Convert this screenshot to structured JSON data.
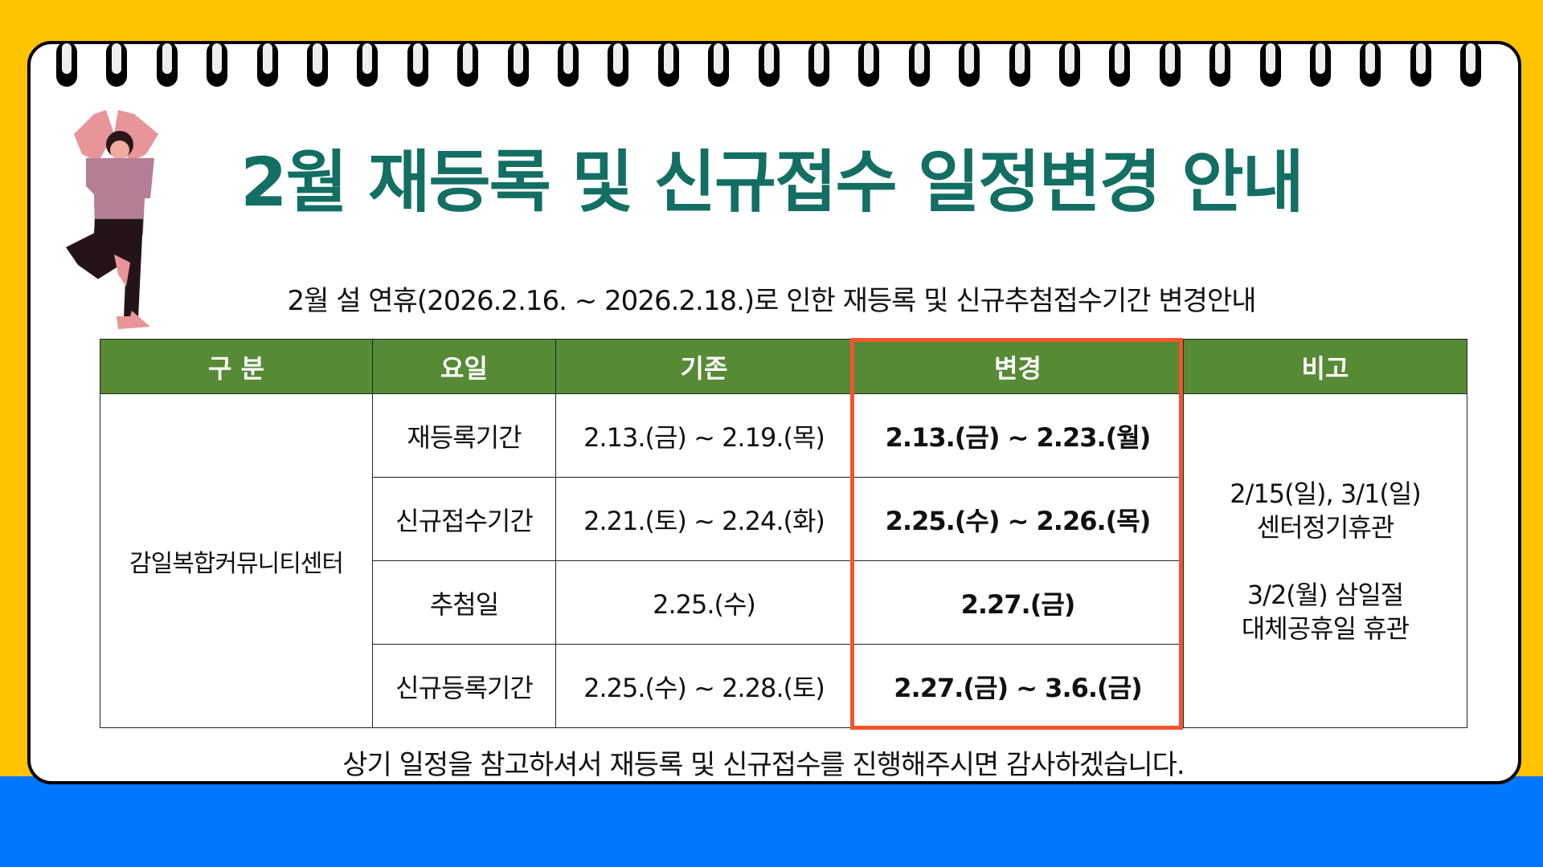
{
  "title": "2월 재등록 및 신규접수 일정변경 안내",
  "subtitle": "2월 설 연휴(2026.2.16. ~ 2026.2.18.)로 인한 재등록 및 신규추첨접수기간 변경안내",
  "table": {
    "headers": [
      "구 분",
      "요일",
      "기존",
      "변경",
      "비고"
    ],
    "group": "감일복합커뮤니티센터",
    "rows": [
      {
        "item": "재등록기간",
        "before": "2.13.(금) ~ 2.19.(목)",
        "after": "2.13.(금) ~ 2.23.(월)"
      },
      {
        "item": "신규접수기간",
        "before": "2.21.(토) ~ 2.24.(화)",
        "after": "2.25.(수) ~ 2.26.(목)"
      },
      {
        "item": "추첨일",
        "before": "2.25.(수)",
        "after": "2.27.(금)"
      },
      {
        "item": "신규등록기간",
        "before": "2.25.(수) ~ 2.28.(토)",
        "after": "2.27.(금) ~ 3.6.(금)"
      }
    ],
    "note": {
      "line1": "2/15(일), 3/1(일)",
      "line2": "센터정기휴관",
      "line3": "3/2(월) 삼일절",
      "line4": "대체공휴일 휴관"
    }
  },
  "footer": "상기 일정을 참고하셔서 재등록 및 신규접수를 진행해주시면 감사하겠습니다.",
  "colors": {
    "background": "#FFC300",
    "band": "#0077FF",
    "title": "#136F63",
    "header": "#568A35",
    "highlight": "#F4532F"
  },
  "icons": {
    "figure": "yoga-woman-illustration",
    "binding": "spiral-rings"
  }
}
